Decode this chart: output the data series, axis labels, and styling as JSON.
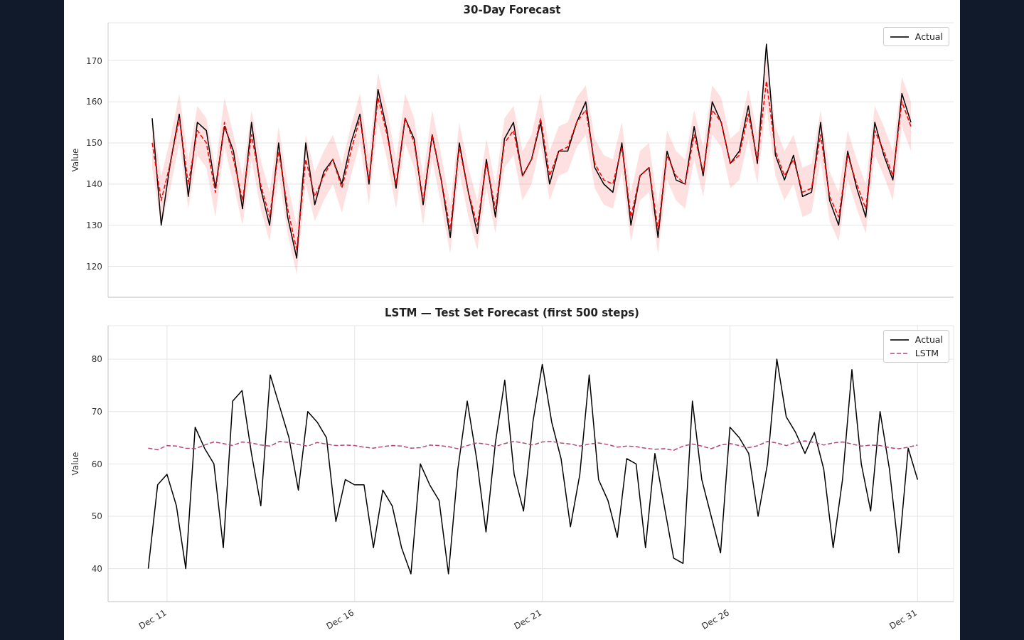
{
  "chart_data": [
    {
      "type": "line",
      "title": "30-Day Forecast",
      "ylabel": "Value",
      "ylim": [
        112.5,
        179.2
      ],
      "yticks": [
        120,
        130,
        140,
        150,
        160,
        170
      ],
      "grid": "y",
      "legend": "top right",
      "categories": [
        null,
        null,
        null,
        null,
        null,
        null,
        null,
        null,
        null,
        null,
        null,
        null,
        null,
        null,
        null,
        null,
        null,
        null,
        null,
        null,
        null,
        null,
        null,
        null,
        null,
        null,
        null,
        null,
        null,
        null,
        null,
        null,
        null,
        null,
        null,
        null,
        null,
        null,
        null,
        null,
        null,
        null,
        null,
        null,
        null,
        null,
        null,
        null,
        null,
        null,
        null,
        null,
        null,
        null,
        null,
        null,
        null,
        null,
        null,
        null,
        null,
        null,
        null,
        null,
        null,
        null,
        null,
        null,
        null,
        null,
        null,
        null,
        null,
        null,
        null,
        null,
        null,
        null,
        null,
        null,
        null,
        null,
        null,
        null,
        null
      ],
      "series": [
        {
          "name": "Actual",
          "color": "#000000",
          "line_style": "solid",
          "values": [
            156,
            130,
            145,
            157,
            137,
            155,
            153,
            139,
            154,
            148,
            134,
            155,
            139,
            130,
            150,
            132,
            122,
            150,
            135,
            143,
            146,
            140,
            150,
            157,
            140,
            163,
            153,
            139,
            156,
            151,
            135,
            152,
            141,
            127,
            150,
            138,
            128,
            146,
            132,
            151,
            155,
            142,
            146,
            155,
            140,
            148,
            148,
            155,
            160,
            144,
            140,
            138,
            150,
            130,
            142,
            144,
            127,
            148,
            141,
            140,
            154,
            142,
            160,
            155,
            145,
            148,
            159,
            145,
            174,
            147,
            141,
            147,
            137,
            138,
            155,
            136,
            130,
            148,
            139,
            132,
            155,
            147,
            141,
            162,
            155
          ]
        },
        {
          "color": "#ff0000",
          "line_style": "dashed",
          "values": [
            150,
            136,
            145,
            156,
            140,
            153,
            150,
            138,
            155,
            146,
            136,
            152,
            140,
            132,
            148,
            134,
            124,
            146,
            137,
            142,
            146,
            139,
            148,
            156,
            141,
            161,
            152,
            140,
            156,
            150,
            136,
            152,
            141,
            129,
            149,
            138,
            130,
            145,
            134,
            150,
            153,
            142,
            146,
            156,
            142,
            148,
            149,
            155,
            158,
            145,
            141,
            140,
            149,
            132,
            142,
            144,
            129,
            147,
            142,
            140,
            152,
            143,
            158,
            155,
            145,
            147,
            157,
            146,
            165,
            148,
            142,
            146,
            138,
            139,
            152,
            137,
            132,
            147,
            140,
            134,
            153,
            148,
            142,
            160,
            154
          ],
          "lower": [
            144,
            130,
            139,
            150,
            134,
            147,
            144,
            132,
            149,
            140,
            130,
            146,
            134,
            126,
            142,
            128,
            118,
            140,
            131,
            136,
            140,
            133,
            142,
            150,
            135,
            155,
            146,
            134,
            150,
            144,
            130,
            146,
            135,
            123,
            143,
            132,
            124,
            139,
            128,
            144,
            147,
            136,
            140,
            150,
            136,
            142,
            143,
            149,
            152,
            139,
            135,
            134,
            143,
            126,
            136,
            138,
            123,
            141,
            136,
            134,
            146,
            137,
            152,
            149,
            139,
            141,
            151,
            140,
            159,
            142,
            136,
            140,
            132,
            133,
            146,
            131,
            126,
            141,
            134,
            128,
            147,
            142,
            136,
            154,
            148
          ],
          "upper": [
            156,
            142,
            151,
            162,
            146,
            159,
            156,
            144,
            161,
            152,
            142,
            158,
            146,
            138,
            154,
            140,
            130,
            152,
            143,
            148,
            152,
            145,
            154,
            162,
            147,
            167,
            158,
            146,
            162,
            156,
            142,
            158,
            147,
            135,
            155,
            144,
            136,
            151,
            140,
            156,
            159,
            148,
            152,
            162,
            148,
            154,
            155,
            161,
            164,
            151,
            147,
            146,
            155,
            138,
            148,
            150,
            135,
            153,
            148,
            146,
            158,
            149,
            164,
            161,
            151,
            153,
            163,
            152,
            171,
            154,
            148,
            152,
            144,
            145,
            158,
            143,
            138,
            153,
            146,
            140,
            159,
            154,
            148,
            166,
            160
          ]
        }
      ]
    },
    {
      "type": "line",
      "title": "LSTM — Test Set Forecast (first 500 steps)",
      "ylabel": "Value",
      "xlim": [
        "--12-09T10:19",
        "--12-31T23:02"
      ],
      "xticks": [
        {
          "value": "--12-11",
          "label": "Dec 11"
        },
        {
          "value": "--12-16",
          "label": "Dec 16"
        },
        {
          "value": "--12-21",
          "label": "Dec 21"
        },
        {
          "value": "--12-26",
          "label": "Dec 26"
        },
        {
          "value": "--12-31",
          "label": "Dec 31"
        }
      ],
      "ylim": [
        33.7,
        86.4
      ],
      "yticks": [
        40,
        50,
        60,
        70,
        80
      ],
      "grid": true,
      "legend": "top right",
      "x": [
        "--12-10T12:00",
        "--12-10T18:00",
        "--12-11T00:00",
        "--12-11T06:00",
        "--12-11T12:00",
        "--12-11T18:00",
        "--12-12T00:00",
        "--12-12T06:00",
        "--12-12T12:00",
        "--12-12T18:00",
        "--12-13T00:00",
        "--12-13T06:00",
        "--12-13T12:00",
        "--12-13T18:00",
        "--12-14T00:00",
        "--12-14T06:00",
        "--12-14T12:00",
        "--12-14T18:00",
        "--12-15T00:00",
        "--12-15T06:00",
        "--12-15T12:00",
        "--12-15T18:00",
        "--12-16T00:00",
        "--12-16T06:00",
        "--12-16T12:00",
        "--12-16T18:00",
        "--12-17T00:00",
        "--12-17T06:00",
        "--12-17T12:00",
        "--12-17T18:00",
        "--12-18T00:00",
        "--12-18T06:00",
        "--12-18T12:00",
        "--12-18T18:00",
        "--12-19T00:00",
        "--12-19T06:00",
        "--12-19T12:00",
        "--12-19T18:00",
        "--12-20T00:00",
        "--12-20T06:00",
        "--12-20T12:00",
        "--12-20T18:00",
        "--12-21T00:00",
        "--12-21T06:00",
        "--12-21T12:00",
        "--12-21T18:00",
        "--12-22T00:00",
        "--12-22T06:00",
        "--12-22T12:00",
        "--12-22T18:00",
        "--12-23T00:00",
        "--12-23T06:00",
        "--12-23T12:00",
        "--12-23T18:00",
        "--12-24T00:00",
        "--12-24T06:00",
        "--12-24T12:00",
        "--12-24T18:00",
        "--12-25T00:00",
        "--12-25T06:00",
        "--12-25T12:00",
        "--12-25T18:00",
        "--12-26T00:00",
        "--12-26T06:00",
        "--12-26T12:00",
        "--12-26T18:00",
        "--12-27T00:00",
        "--12-27T06:00",
        "--12-27T12:00",
        "--12-27T18:00",
        "--12-28T00:00",
        "--12-28T06:00",
        "--12-28T12:00",
        "--12-28T18:00",
        "--12-29T00:00",
        "--12-29T06:00",
        "--12-29T12:00",
        "--12-29T18:00",
        "--12-30T00:00",
        "--12-30T06:00",
        "--12-30T12:00",
        "--12-30T18:00",
        "--12-31T00:00"
      ],
      "series": [
        {
          "name": "Actual",
          "color": "#000000",
          "line_style": "solid",
          "values": [
            40,
            56,
            58,
            52,
            40,
            67,
            63,
            60,
            44,
            72,
            74,
            62,
            52,
            77,
            71,
            65,
            55,
            70,
            68,
            65,
            49,
            57,
            56,
            56,
            44,
            55,
            52,
            44,
            39,
            60,
            56,
            53,
            39,
            59,
            72,
            61,
            47,
            64,
            76,
            58,
            51,
            68,
            79,
            68,
            61,
            48,
            58,
            77,
            57,
            53,
            46,
            61,
            60,
            44,
            62,
            52,
            42,
            41,
            72,
            57,
            50,
            43,
            67,
            65,
            62,
            50,
            60,
            80,
            69,
            66,
            62,
            66,
            59,
            44,
            57,
            78,
            60,
            51,
            70,
            59,
            43,
            63,
            57
          ]
        },
        {
          "name": "LSTM",
          "color": "#b5477a",
          "line_style": "dashed",
          "values": [
            63.0,
            62.7,
            63.5,
            63.4,
            63.0,
            62.9,
            63.6,
            64.2,
            63.9,
            63.5,
            64.2,
            64.0,
            63.6,
            63.4,
            64.3,
            64.1,
            63.7,
            63.4,
            64.1,
            63.8,
            63.5,
            63.6,
            63.5,
            63.2,
            63.0,
            63.3,
            63.5,
            63.4,
            63.0,
            63.1,
            63.6,
            63.5,
            63.3,
            62.9,
            63.5,
            64.0,
            63.8,
            63.3,
            63.9,
            64.3,
            64.0,
            63.6,
            64.2,
            64.3,
            64.0,
            63.8,
            63.4,
            63.8,
            64.0,
            63.7,
            63.2,
            63.4,
            63.3,
            63.0,
            62.8,
            62.9,
            62.6,
            63.4,
            63.8,
            63.4,
            62.9,
            63.6,
            63.9,
            63.5,
            63.1,
            63.5,
            64.3,
            64.0,
            63.5,
            64.1,
            64.4,
            64.1,
            63.6,
            64.0,
            64.2,
            63.8,
            63.4,
            63.6,
            63.5,
            63.1,
            62.9,
            63.2,
            63.6
          ]
        }
      ]
    }
  ]
}
